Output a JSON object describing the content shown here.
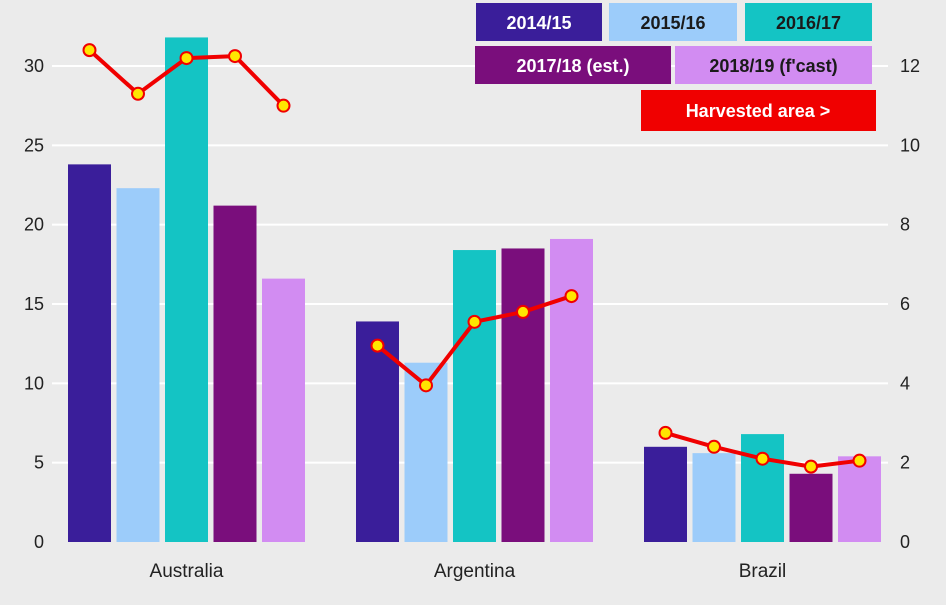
{
  "chart_data": {
    "type": "bar",
    "categories": [
      "Australia",
      "Argentina",
      "Brazil"
    ],
    "series": [
      {
        "name": "2014/15",
        "color": "#3a1e9a",
        "values": [
          23.8,
          13.9,
          6.0
        ]
      },
      {
        "name": "2015/16",
        "color": "#9cccfa",
        "values": [
          22.3,
          11.3,
          5.6
        ]
      },
      {
        "name": "2016/17",
        "color": "#14c4c4",
        "values": [
          31.8,
          18.4,
          6.8
        ]
      },
      {
        "name": "2017/18  (est.)",
        "color": "#7a0e7c",
        "values": [
          21.2,
          18.5,
          4.3
        ]
      },
      {
        "name": "2018/19  (f'cast)",
        "color": "#d28cf2",
        "values": [
          16.6,
          19.1,
          5.4
        ]
      }
    ],
    "line_series": {
      "name": "Harvested area >",
      "color": "#f00000",
      "marker_fill": "#ffe600",
      "axis": "right",
      "values": [
        [
          12.4,
          11.3,
          12.2,
          12.25,
          11.0
        ],
        [
          4.95,
          3.95,
          5.55,
          5.8,
          6.2
        ],
        [
          2.75,
          2.4,
          2.1,
          1.9,
          2.05
        ]
      ]
    },
    "y_left": {
      "min": 0,
      "max": 33.5,
      "ticks": [
        0,
        5,
        10,
        15,
        20,
        25,
        30
      ]
    },
    "y_right": {
      "min": 0,
      "max": 13.4,
      "ticks": [
        0,
        2,
        4,
        6,
        8,
        10,
        12
      ]
    },
    "grid": true,
    "legend_position": "top-right",
    "background": "#ebebeb",
    "gridline_color": "#ffffff"
  }
}
